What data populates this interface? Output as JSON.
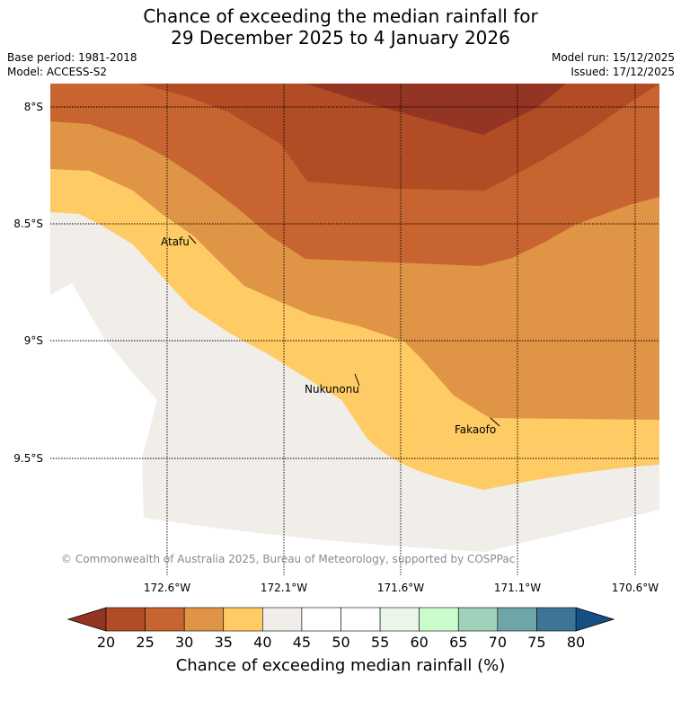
{
  "header": {
    "title_line1": "Chance of exceeding the median rainfall for",
    "title_line2": "29 December 2025 to 4 January 2026",
    "base_period": "Base period: 1981-2018",
    "model": "Model: ACCESS-S2",
    "model_run": "Model run: 15/12/2025",
    "issued": "Issued: 17/12/2025"
  },
  "map": {
    "lat_labels": [
      "8°S",
      "8.5°S",
      "9°S",
      "9.5°S"
    ],
    "lon_labels": [
      "172.6°W",
      "172.1°W",
      "171.6°W",
      "171.1°W",
      "170.6°W"
    ],
    "places": [
      "Atafu",
      "Nukunonu",
      "Fakaofo"
    ],
    "copyright": "© Commonwealth of Australia 2025, Bureau of Meteorology, supported by COSPPac"
  },
  "colorbar": {
    "ticks": [
      "20",
      "25",
      "30",
      "35",
      "40",
      "45",
      "50",
      "55",
      "60",
      "65",
      "70",
      "75",
      "80"
    ],
    "colors": [
      "#b14c25",
      "#c8642f",
      "#e09445",
      "#fecb64",
      "#f1ede8",
      "#ffffff",
      "#ffffff",
      "#eaf6e9",
      "#c9fdcb",
      "#9fd1bb",
      "#6ea5a7",
      "#3d7596"
    ],
    "low_extend_color": "#943423",
    "high_extend_color": "#144f86",
    "label": "Chance of exceeding median rainfall (%)"
  }
}
